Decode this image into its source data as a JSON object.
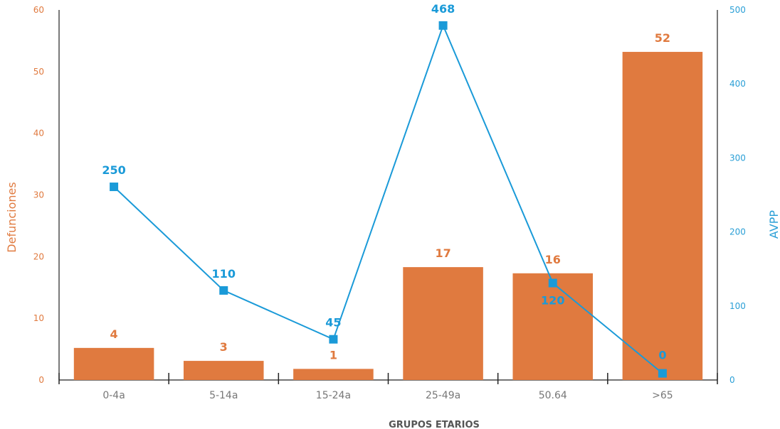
{
  "chart_data": {
    "type": "bar+line",
    "categories": [
      "0-4a",
      "5-14a",
      "15-24a",
      "25-49a",
      "50.64",
      ">65"
    ],
    "series": [
      {
        "name": "Defunciones",
        "type": "bar",
        "axis": "left",
        "values": [
          4,
          3,
          1,
          17,
          16,
          52
        ],
        "heights": [
          5.2,
          3.1,
          1.8,
          18.3,
          17.3,
          53.2
        ],
        "color": "#e07a3f"
      },
      {
        "name": "AVPP",
        "type": "line",
        "axis": "right",
        "values": [
          250,
          110,
          45,
          468,
          120,
          0
        ],
        "heights": [
          261,
          121,
          55,
          479,
          131,
          9
        ],
        "color": "#1a9ad8"
      }
    ],
    "xlabel": "GRUPOS ETARIOS",
    "ylabel_left": "Defunciones",
    "ylabel_right": "AVPP",
    "ylim_left": [
      0,
      60
    ],
    "yticks_left": [
      0,
      10,
      20,
      30,
      40,
      50,
      60
    ],
    "ylim_right": [
      0,
      500
    ],
    "yticks_right": [
      0,
      100,
      200,
      300,
      400,
      500
    ],
    "grid": false,
    "legend": "none",
    "colors": {
      "bar": "#e07a3f",
      "line": "#1a9ad8",
      "axis": "#222222"
    }
  }
}
